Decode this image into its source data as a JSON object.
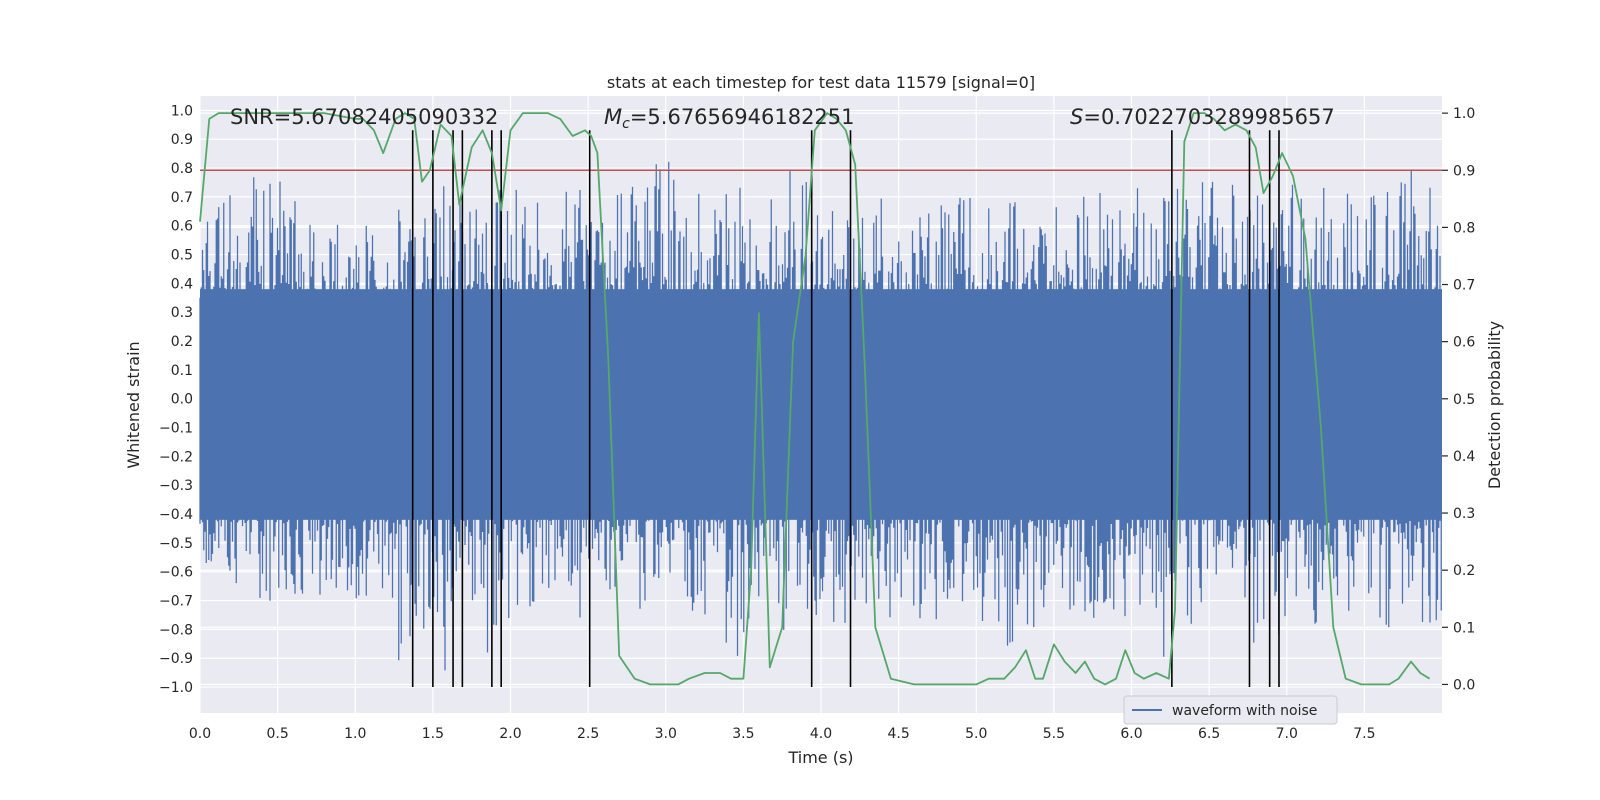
{
  "chart_data": {
    "type": "line",
    "title": "stats at each timestep for test data 11579 [signal=0]",
    "xlabel": "Time (s)",
    "ylabel_left": "Whitened strain",
    "ylabel_right": "Detection probability",
    "xlim": [
      0.0,
      8.0
    ],
    "ylim_left": [
      -1.09,
      1.05
    ],
    "ylim_right": [
      -0.05,
      1.03
    ],
    "x_ticks": [
      0.0,
      0.5,
      1.0,
      1.5,
      2.0,
      2.5,
      3.0,
      3.5,
      4.0,
      4.5,
      5.0,
      5.5,
      6.0,
      6.5,
      7.0,
      7.5
    ],
    "x_tick_labels": [
      "0.0",
      "0.5",
      "1.0",
      "1.5",
      "2.0",
      "2.5",
      "3.0",
      "3.5",
      "4.0",
      "4.5",
      "5.0",
      "5.5",
      "6.0",
      "6.5",
      "7.0",
      "7.5"
    ],
    "y_left_ticks": [
      1.0,
      0.9,
      0.8,
      0.7,
      0.6,
      0.5,
      0.4,
      0.3,
      0.2,
      0.1,
      0.0,
      -0.1,
      -0.2,
      -0.3,
      -0.4,
      -0.5,
      -0.6,
      -0.7,
      -0.8,
      -0.9,
      -1.0
    ],
    "y_left_tick_labels": [
      "1.0",
      "0.9",
      "0.8",
      "0.7",
      "0.6",
      "0.5",
      "0.4",
      "0.3",
      "0.2",
      "0.1",
      "0.0",
      "−0.1",
      "−0.2",
      "−0.3",
      "−0.4",
      "−0.5",
      "−0.6",
      "−0.7",
      "−0.8",
      "−0.9",
      "−1.0"
    ],
    "y_right_ticks": [
      1.0,
      0.9,
      0.8,
      0.7,
      0.6,
      0.5,
      0.4,
      0.3,
      0.2,
      0.1,
      0.0
    ],
    "y_right_tick_labels": [
      "1.0",
      "0.9",
      "0.8",
      "0.7",
      "0.6",
      "0.5",
      "0.4",
      "0.3",
      "0.2",
      "0.1",
      "0.0"
    ],
    "grid": true,
    "annotations": {
      "snr": "SNR=5.67082405090332",
      "mc_symbol": "M",
      "mc_sub": "c",
      "mc_value": "=5.67656946182251",
      "s_symbol": "S",
      "s_value": "=0.7022703289985657"
    },
    "threshold_line": {
      "value": 0.9,
      "axis": "right",
      "color": "#c44e52"
    },
    "vertical_lines": {
      "times": [
        1.37,
        1.5,
        1.63,
        1.69,
        1.88,
        1.94,
        2.51,
        3.94,
        4.19,
        6.26,
        6.76,
        6.89,
        6.95
      ],
      "ymin": -1.0,
      "ymax": 0.97,
      "color": "#000000"
    },
    "series": [
      {
        "name": "waveform with noise",
        "axis": "left",
        "color": "#4c72b0",
        "envelope": {
          "x": [
            0.0,
            0.2,
            0.4,
            0.6,
            0.8,
            1.0,
            1.2,
            1.4,
            1.6,
            1.8,
            2.0,
            2.2,
            2.4,
            2.6,
            2.8,
            3.0,
            3.2,
            3.4,
            3.6,
            3.8,
            4.0,
            4.2,
            4.4,
            4.6,
            4.8,
            5.0,
            5.2,
            5.4,
            5.6,
            5.8,
            6.0,
            6.2,
            6.4,
            6.6,
            6.8,
            7.0,
            7.2,
            7.4,
            7.6,
            7.8,
            8.0
          ],
          "upper": [
            0.6,
            0.72,
            0.85,
            0.7,
            0.68,
            0.72,
            0.75,
            0.6,
            0.8,
            0.7,
            0.75,
            0.7,
            0.8,
            0.7,
            0.78,
            0.84,
            0.75,
            0.78,
            0.7,
            0.8,
            0.75,
            0.6,
            0.75,
            0.65,
            0.72,
            0.75,
            0.7,
            0.72,
            0.7,
            0.8,
            0.78,
            0.72,
            0.75,
            0.78,
            0.8,
            0.75,
            0.73,
            0.78,
            0.75,
            0.85,
            0.7
          ],
          "lower": [
            -0.55,
            -0.72,
            -0.75,
            -0.7,
            -0.68,
            -0.7,
            -0.95,
            -0.9,
            -0.98,
            -0.9,
            -0.86,
            -0.7,
            -0.8,
            -0.7,
            -0.75,
            -0.72,
            -0.8,
            -0.92,
            -0.85,
            -0.8,
            -0.82,
            -0.88,
            -0.75,
            -0.82,
            -0.75,
            -0.8,
            -0.9,
            -0.8,
            -0.75,
            -0.78,
            -0.75,
            -0.9,
            -0.85,
            -0.8,
            -0.88,
            -0.82,
            -0.78,
            -0.78,
            -0.8,
            -0.85,
            -0.75
          ]
        }
      },
      {
        "name": "detection probability",
        "axis": "right",
        "color": "#55a868",
        "x": [
          0.0,
          0.06,
          0.12,
          0.2,
          0.3,
          0.5,
          0.8,
          1.0,
          1.05,
          1.12,
          1.18,
          1.26,
          1.32,
          1.38,
          1.43,
          1.48,
          1.55,
          1.62,
          1.67,
          1.75,
          1.82,
          1.88,
          1.94,
          2.0,
          2.08,
          2.15,
          2.24,
          2.32,
          2.4,
          2.48,
          2.52,
          2.56,
          2.63,
          2.7,
          2.8,
          2.9,
          3.0,
          3.08,
          3.15,
          3.25,
          3.35,
          3.42,
          3.5,
          3.55,
          3.6,
          3.67,
          3.75,
          3.82,
          3.9,
          3.96,
          4.04,
          4.1,
          4.16,
          4.22,
          4.28,
          4.35,
          4.45,
          4.6,
          4.8,
          5.0,
          5.08,
          5.18,
          5.25,
          5.32,
          5.38,
          5.43,
          5.5,
          5.57,
          5.64,
          5.7,
          5.76,
          5.83,
          5.9,
          5.96,
          6.02,
          6.08,
          6.16,
          6.24,
          6.28,
          6.34,
          6.4,
          6.47,
          6.53,
          6.6,
          6.67,
          6.74,
          6.8,
          6.85,
          6.91,
          6.97,
          7.04,
          7.12,
          7.22,
          7.3,
          7.38,
          7.48,
          7.58,
          7.66,
          7.72,
          7.8,
          7.86,
          7.92
        ],
        "values": [
          0.81,
          0.99,
          1.0,
          1.0,
          1.0,
          1.0,
          1.0,
          0.99,
          0.99,
          0.97,
          0.93,
          0.99,
          1.0,
          0.99,
          0.88,
          0.9,
          0.98,
          0.96,
          0.84,
          0.94,
          0.97,
          0.93,
          0.83,
          0.97,
          1.0,
          1.0,
          1.0,
          0.99,
          0.96,
          0.97,
          0.96,
          0.93,
          0.57,
          0.05,
          0.01,
          0.0,
          0.0,
          0.0,
          0.01,
          0.02,
          0.02,
          0.01,
          0.01,
          0.2,
          0.65,
          0.03,
          0.1,
          0.6,
          0.75,
          0.97,
          1.0,
          0.99,
          0.97,
          0.91,
          0.57,
          0.1,
          0.01,
          0.0,
          0.0,
          0.0,
          0.01,
          0.01,
          0.03,
          0.06,
          0.01,
          0.01,
          0.07,
          0.04,
          0.02,
          0.04,
          0.01,
          0.0,
          0.01,
          0.06,
          0.02,
          0.01,
          0.02,
          0.01,
          0.13,
          0.95,
          1.0,
          1.0,
          0.99,
          0.97,
          0.98,
          0.97,
          0.94,
          0.86,
          0.89,
          0.93,
          0.89,
          0.78,
          0.45,
          0.1,
          0.01,
          0.0,
          0.0,
          0.0,
          0.01,
          0.04,
          0.02,
          0.01
        ]
      }
    ],
    "legend": {
      "label": "waveform with noise",
      "placement": "lower-right"
    }
  }
}
